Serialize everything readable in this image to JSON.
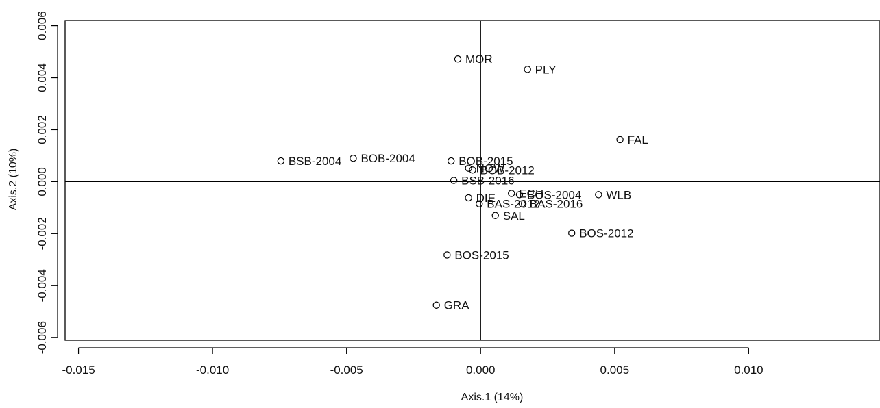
{
  "chart_data": {
    "type": "scatter",
    "title": "",
    "xlabel": "Axis.1 (14%)",
    "ylabel": "Axis.2 (10%)",
    "xlim": [
      -0.0155,
      0.0149
    ],
    "ylim": [
      -0.0061,
      0.0062
    ],
    "x_ticks": [
      -0.015,
      -0.01,
      -0.005,
      0.0,
      0.005,
      0.01
    ],
    "x_tick_labels": [
      "-0.015",
      "-0.010",
      "-0.005",
      "0.000",
      "0.005",
      "0.010"
    ],
    "y_ticks": [
      -0.006,
      -0.004,
      -0.002,
      0.0,
      0.002,
      0.004,
      0.006
    ],
    "y_tick_labels": [
      "-0.006",
      "-0.004",
      "-0.002",
      "0.000",
      "0.002",
      "0.004",
      "0.006"
    ],
    "reference_lines": {
      "x": 0,
      "y": 0
    },
    "grid": false,
    "points": [
      {
        "label": "MOR",
        "x": -0.00085,
        "y": 0.00472
      },
      {
        "label": "PLY",
        "x": 0.00175,
        "y": 0.00432
      },
      {
        "label": "FAL",
        "x": 0.0052,
        "y": 0.00162
      },
      {
        "label": "BSB-2004",
        "x": -0.00745,
        "y": 0.0008
      },
      {
        "label": "BOB-2004",
        "x": -0.00475,
        "y": 0.0009
      },
      {
        "label": "BOB-2015",
        "x": -0.0011,
        "y": 0.0008
      },
      {
        "label": "NOW",
        "x": -0.00045,
        "y": 0.00052
      },
      {
        "label": "BOB-2012",
        "x": -0.0003,
        "y": 0.00045
      },
      {
        "label": "BSB-2016",
        "x": -0.001,
        "y": 5e-05
      },
      {
        "label": "ECH",
        "x": 0.00115,
        "y": -0.00045
      },
      {
        "label": "BOS-2004",
        "x": 0.00145,
        "y": -0.0005
      },
      {
        "label": "WLB",
        "x": 0.0044,
        "y": -0.0005
      },
      {
        "label": "DIE",
        "x": -0.00045,
        "y": -0.00062
      },
      {
        "label": "BAS-2012",
        "x": -5e-05,
        "y": -0.00085
      },
      {
        "label": "BAS-2016",
        "x": 0.00155,
        "y": -0.00085
      },
      {
        "label": "SAL",
        "x": 0.00055,
        "y": -0.0013
      },
      {
        "label": "BOS-2012",
        "x": 0.0034,
        "y": -0.00198
      },
      {
        "label": "BOS-2015",
        "x": -0.00125,
        "y": -0.00282
      },
      {
        "label": "GRA",
        "x": -0.00165,
        "y": -0.00475
      }
    ]
  }
}
